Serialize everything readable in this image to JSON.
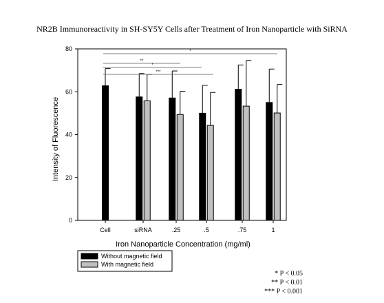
{
  "chart_data": {
    "type": "bar",
    "title": "NR2B Immunoreactivity in SH-SY5Y Cells after Treatment of Iron Nanoparticle with SiRNA",
    "xlabel": "Iron Nanoparticle Concentration (mg/ml)",
    "ylabel": "Intensity of Fluorescence",
    "categories": [
      "Cell",
      "siRNA",
      ".25",
      ".5",
      ".75",
      "1"
    ],
    "ylim": [
      0,
      80
    ],
    "yticks": [
      0,
      20,
      40,
      60,
      80
    ],
    "series": [
      {
        "name": "Without magnetic field",
        "color": "#000000",
        "values": [
          62.8,
          57.6,
          57.1,
          50.0,
          61.2,
          55.0
        ],
        "errors": [
          8.0,
          10.9,
          12.6,
          13.0,
          11.3,
          15.6
        ]
      },
      {
        "name": "With magnetic field",
        "color": "#c0c0c0",
        "values": [
          null,
          55.8,
          49.4,
          44.3,
          53.3,
          50.1
        ],
        "errors": [
          null,
          12.3,
          10.8,
          15.4,
          21.3,
          13.3
        ]
      }
    ],
    "significance": [
      {
        "from": "Cell",
        "to": "1",
        "label": "*"
      },
      {
        "from": "Cell",
        "to": ".25",
        "label": "**"
      },
      {
        "from": "Cell",
        "to": ".5",
        "label": "*"
      },
      {
        "from": "Cell",
        "to": ".5",
        "label": "***"
      }
    ],
    "legend_position": "bottom-left",
    "grid": false
  },
  "notes": [
    "* P < 0.05",
    "** P < 0.01",
    "*** P < 0.001"
  ]
}
